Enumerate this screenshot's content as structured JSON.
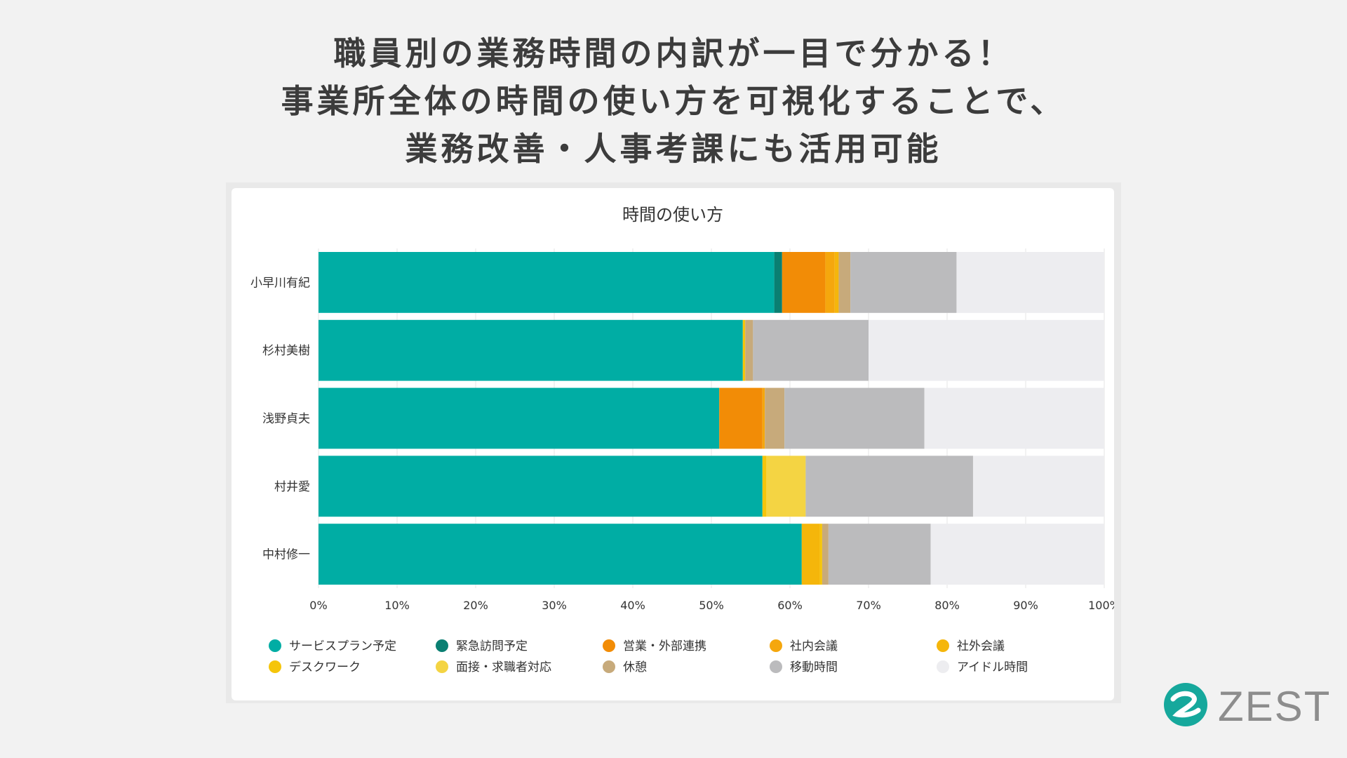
{
  "headline": {
    "line1": "職員別の業務時間の内訳が一目で分かる！",
    "line2": "事業所全体の時間の使い方を可視化することで、",
    "line3": "業務改善・人事考課にも活用可能"
  },
  "logo": {
    "text": "ZEST",
    "icon": "zest-logo-icon",
    "color": "#16a89c"
  },
  "chart_data": {
    "type": "bar",
    "orientation": "horizontal",
    "stacked": true,
    "title": "時間の使い方",
    "categories": [
      "小早川有紀",
      "杉村美樹",
      "浅野貞夫",
      "村井愛",
      "中村修一"
    ],
    "xlim": [
      0,
      100
    ],
    "xticks": [
      "0%",
      "10%",
      "20%",
      "30%",
      "40%",
      "50%",
      "60%",
      "70%",
      "80%",
      "90%",
      "100%"
    ],
    "grid": true,
    "legend_position": "bottom",
    "series": [
      {
        "name": "サービスプラン予定",
        "color": "#00ada4",
        "values": [
          58.0,
          54.0,
          51.0,
          56.5,
          61.5
        ]
      },
      {
        "name": "緊急訪問予定",
        "color": "#0a7f72",
        "values": [
          1.0,
          0,
          0,
          0,
          0
        ]
      },
      {
        "name": "営業・外部連携",
        "color": "#f28c06",
        "values": [
          5.5,
          0,
          5.5,
          0,
          0
        ]
      },
      {
        "name": "社内会議",
        "color": "#f5a70d",
        "values": [
          1.2,
          0,
          0.3,
          0,
          0
        ]
      },
      {
        "name": "社外会議",
        "color": "#f5b60b",
        "values": [
          0.5,
          0,
          0,
          0,
          2.3
        ]
      },
      {
        "name": "デスクワーク",
        "color": "#f5c50a",
        "values": [
          0,
          0.3,
          0,
          0.5,
          0.3
        ]
      },
      {
        "name": "面接・求職者対応",
        "color": "#f4d443",
        "values": [
          0,
          0,
          0,
          5.0,
          0
        ]
      },
      {
        "name": "休憩",
        "color": "#c7aa7b",
        "values": [
          1.5,
          1.0,
          2.5,
          0,
          0.8
        ]
      },
      {
        "name": "移動時間",
        "color": "#bbbbbd",
        "values": [
          13.5,
          14.7,
          17.8,
          21.3,
          13.0
        ]
      },
      {
        "name": "アイドル時間",
        "color": "#ededf0",
        "values": [
          18.8,
          30.0,
          22.9,
          16.7,
          22.1
        ]
      }
    ]
  }
}
